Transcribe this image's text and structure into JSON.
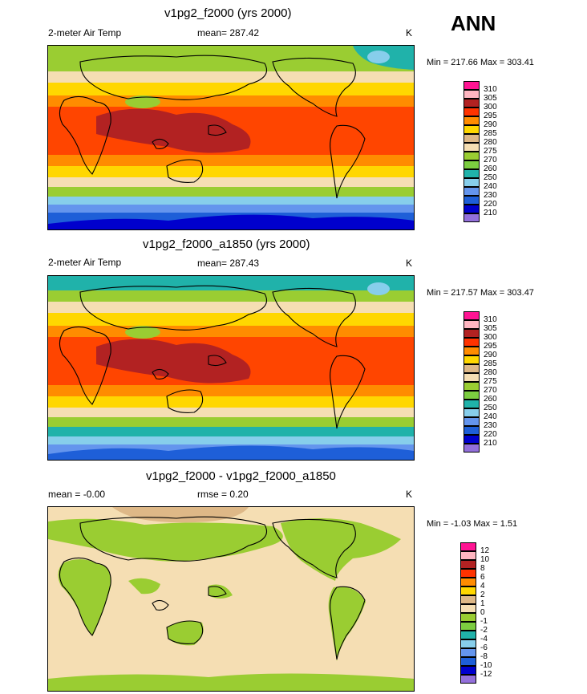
{
  "season": "ANN",
  "panels": [
    {
      "title": "v1pg2_f2000 (yrs 2000)",
      "left_label": "2-meter Air Temp",
      "center_label": "mean= 287.42",
      "units": "K",
      "minmax": "Min = 217.66 Max = 303.41",
      "colorbar": {
        "labels": [
          "310",
          "305",
          "300",
          "295",
          "290",
          "285",
          "280",
          "275",
          "270",
          "260",
          "250",
          "240",
          "230",
          "220",
          "210"
        ],
        "colors": [
          "#ff1493",
          "#ffb6c1",
          "#b22222",
          "#ff3300",
          "#ff8c00",
          "#ffd700",
          "#deb887",
          "#f5deb3",
          "#9acd32",
          "#7ccd40",
          "#20b2aa",
          "#87ceeb",
          "#6495ed",
          "#1e5fd8",
          "#0000cd",
          "#9370db"
        ]
      }
    },
    {
      "title": "v1pg2_f2000_a1850 (yrs 2000)",
      "left_label": "2-meter Air Temp",
      "center_label": "mean= 287.43",
      "units": "K",
      "minmax": "Min = 217.57 Max = 303.47",
      "colorbar": {
        "labels": [
          "310",
          "305",
          "300",
          "295",
          "290",
          "285",
          "280",
          "275",
          "270",
          "260",
          "250",
          "240",
          "230",
          "220",
          "210"
        ],
        "colors": [
          "#ff1493",
          "#ffb6c1",
          "#b22222",
          "#ff3300",
          "#ff8c00",
          "#ffd700",
          "#deb887",
          "#f5deb3",
          "#9acd32",
          "#7ccd40",
          "#20b2aa",
          "#87ceeb",
          "#6495ed",
          "#1e5fd8",
          "#0000cd",
          "#9370db"
        ]
      }
    },
    {
      "title": "v1pg2_f2000 - v1pg2_f2000_a1850",
      "left_label": "mean =  -0.00",
      "center_label": "rmse =   0.20",
      "units": "K",
      "minmax": "Min =  -1.03 Max =   1.51",
      "colorbar": {
        "labels": [
          "12",
          "10",
          "8",
          "6",
          "4",
          "2",
          "1",
          "0",
          "-1",
          "-2",
          "-4",
          "-6",
          "-8",
          "-10",
          "-12"
        ],
        "colors": [
          "#ff1493",
          "#ffb6c1",
          "#b22222",
          "#ff3300",
          "#ff8c00",
          "#ffd700",
          "#deb887",
          "#f5deb3",
          "#9acd32",
          "#7ccd40",
          "#20b2aa",
          "#87ceeb",
          "#6495ed",
          "#1e5fd8",
          "#0000cd",
          "#9370db"
        ]
      }
    }
  ]
}
